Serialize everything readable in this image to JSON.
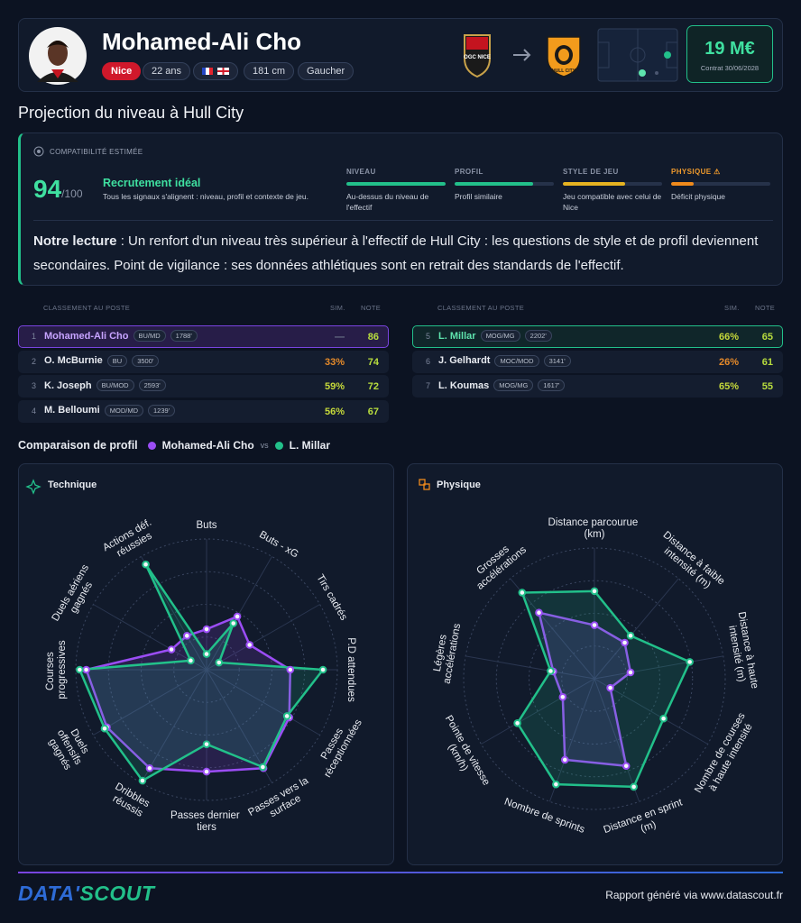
{
  "header": {
    "name": "Mohamed-Ali Cho",
    "club": "Nice",
    "age": "22 ans",
    "height": "181 cm",
    "foot": "Gaucher",
    "from_logo": "OGC NICE",
    "to_logo": "HULL CITY",
    "price": "19 M€",
    "contract": "Contrat 30/06/2028"
  },
  "projection": {
    "title": "Projection du niveau à Hull City",
    "compat_label": "COMPATIBILITÉ ESTIMÉE",
    "score": 94,
    "score_max": "/100",
    "verdict": "Recrutement idéal",
    "verdict_text": "Tous les signaux s'alignent : niveau, profil et contexte de jeu.",
    "signals": [
      {
        "label": "NIVEAU",
        "level": 1.0,
        "color": "#22c08a",
        "label_color": "#8a93a6",
        "text": "Au-dessus du niveau de l'effectif"
      },
      {
        "label": "PROFIL",
        "level": 0.79,
        "color": "#22c08a",
        "label_color": "#8a93a6",
        "text": "Profil similaire"
      },
      {
        "label": "STYLE DE JEU",
        "level": 0.63,
        "color": "#e6b321",
        "label_color": "#8a93a6",
        "text": "Jeu compatible avec celui de Nice"
      },
      {
        "label": "PHYSIQUE ⚠",
        "level": 0.23,
        "color": "#ef8a1c",
        "label_color": "#ef9a2c",
        "text": "Déficit physique"
      }
    ],
    "lecture_label": "Notre lecture",
    "lecture_text": ": Un renfort d'un niveau très supérieur à l'effectif de Hull City : les questions de style et de profil deviennent secondaires. Point de vigilance : ses données athlétiques sont en retrait des standards de l'effectif."
  },
  "rankings": {
    "header": "CLASSEMENT AU POSTE",
    "sim": "SIM.",
    "note": "NOTE",
    "left": [
      {
        "rank": 1,
        "name": "Mohamed-Ali Cho",
        "position": "BU/MD",
        "minutes": "1788'",
        "sim": "—",
        "sim_color": "#6b7489",
        "note": 86
      },
      {
        "rank": 2,
        "name": "O. McBurnie",
        "position": "BU",
        "minutes": "3500'",
        "sim": "33%",
        "sim_color": "#e58a2a",
        "note": 74
      },
      {
        "rank": 3,
        "name": "K. Joseph",
        "position": "BU/MOD",
        "minutes": "2593'",
        "sim": "59%",
        "sim_color": "#c5d83a",
        "note": 72
      },
      {
        "rank": 4,
        "name": "M. Belloumi",
        "position": "MOD/MD",
        "minutes": "1239'",
        "sim": "56%",
        "sim_color": "#c5d83a",
        "note": 67
      }
    ],
    "right": [
      {
        "rank": 5,
        "name": "L. Millar",
        "position": "MOG/MG",
        "minutes": "2202'",
        "sim": "66%",
        "sim_color": "#c5d83a",
        "note": 65
      },
      {
        "rank": 6,
        "name": "J. Gelhardt",
        "position": "MOC/MOD",
        "minutes": "3141'",
        "sim": "26%",
        "sim_color": "#e58a2a",
        "note": 61
      },
      {
        "rank": 7,
        "name": "L. Koumas",
        "position": "MOG/MG",
        "minutes": "1617'",
        "sim": "65%",
        "sim_color": "#c5d83a",
        "note": 55
      }
    ]
  },
  "comparison": {
    "title": "Comparaison de profil",
    "vs": "vs"
  },
  "chart_data": [
    {
      "type": "radar",
      "title": "Technique",
      "categories": [
        "Buts",
        "Buts - xG",
        "Tirs cadrés",
        "P.D attendues",
        "Passes réceptionnées",
        "Passes vers la surface",
        "Passes dernier tiers",
        "Dribbles réussis",
        "Duels offensifs gagnés",
        "Courses progressives",
        "Duels aériens gagnés",
        "Actions déf. réussies"
      ],
      "rlim": [
        0,
        100
      ],
      "rticks": [
        25,
        50,
        75,
        100
      ],
      "series": [
        {
          "name": "Mohamed-Ali Cho",
          "color": "#9b4df5",
          "values": [
            31,
            47,
            38,
            64,
            73,
            87,
            78,
            87,
            88,
            92,
            31,
            30
          ]
        },
        {
          "name": "L. Millar",
          "color": "#22c08a",
          "values": [
            12,
            41,
            11,
            89,
            71,
            86,
            57,
            98,
            90,
            97,
            14,
            93
          ]
        }
      ]
    },
    {
      "type": "radar",
      "title": "Physique",
      "categories": [
        "Distance parcourue (km)",
        "Distance à faible intensité (m)",
        "Distance à haute intensité (m)",
        "Nombre de courses à haute intensité",
        "Distance en sprint (m)",
        "Nombre de sprints",
        "Pointe de vitesse (km/h)",
        "Légères accélérations",
        "Grosses accélérations"
      ],
      "rlim": [
        0,
        100
      ],
      "rticks": [
        25,
        50,
        75,
        100
      ],
      "series": [
        {
          "color": "#9b4df5",
          "values": [
            41,
            36,
            28,
            14,
            71,
            66,
            28,
            32,
            66
          ]
        },
        {
          "color": "#22c08a",
          "values": [
            67,
            43,
            74,
            61,
            88,
            86,
            68,
            34,
            86
          ]
        }
      ]
    }
  ],
  "footer": {
    "brand_a": "DATA'",
    "brand_b": "SCOUT",
    "text": "Rapport généré via www.datascout.fr"
  }
}
